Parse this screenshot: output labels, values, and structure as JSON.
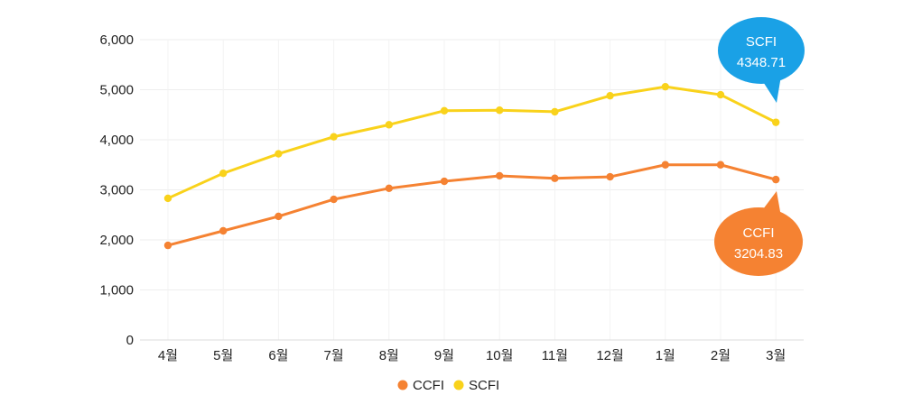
{
  "chart_data": {
    "type": "line",
    "categories": [
      "4월",
      "5월",
      "6월",
      "7월",
      "8월",
      "9월",
      "10월",
      "11월",
      "12월",
      "1월",
      "2월",
      "3월"
    ],
    "series": [
      {
        "name": "CCFI",
        "color": "#f58232",
        "values": [
          1890,
          2180,
          2470,
          2810,
          3030,
          3170,
          3280,
          3230,
          3260,
          3500,
          3500,
          3204.83
        ]
      },
      {
        "name": "SCFI",
        "color": "#f9d21b",
        "values": [
          2830,
          3330,
          3720,
          4060,
          4300,
          4580,
          4590,
          4560,
          4880,
          5060,
          4900,
          4348.71
        ]
      }
    ],
    "yticks": [
      "0",
      "1,000",
      "2,000",
      "3,000",
      "4,000",
      "5,000",
      "6,000"
    ],
    "ylim": [
      0,
      6000
    ],
    "grid": true,
    "legend": "bottom-center",
    "callouts": [
      {
        "series": "SCFI",
        "label": "SCFI",
        "value": "4348.71",
        "color": "#1aa1e6"
      },
      {
        "series": "CCFI",
        "label": "CCFI",
        "value": "3204.83",
        "color": "#f58232"
      }
    ]
  }
}
